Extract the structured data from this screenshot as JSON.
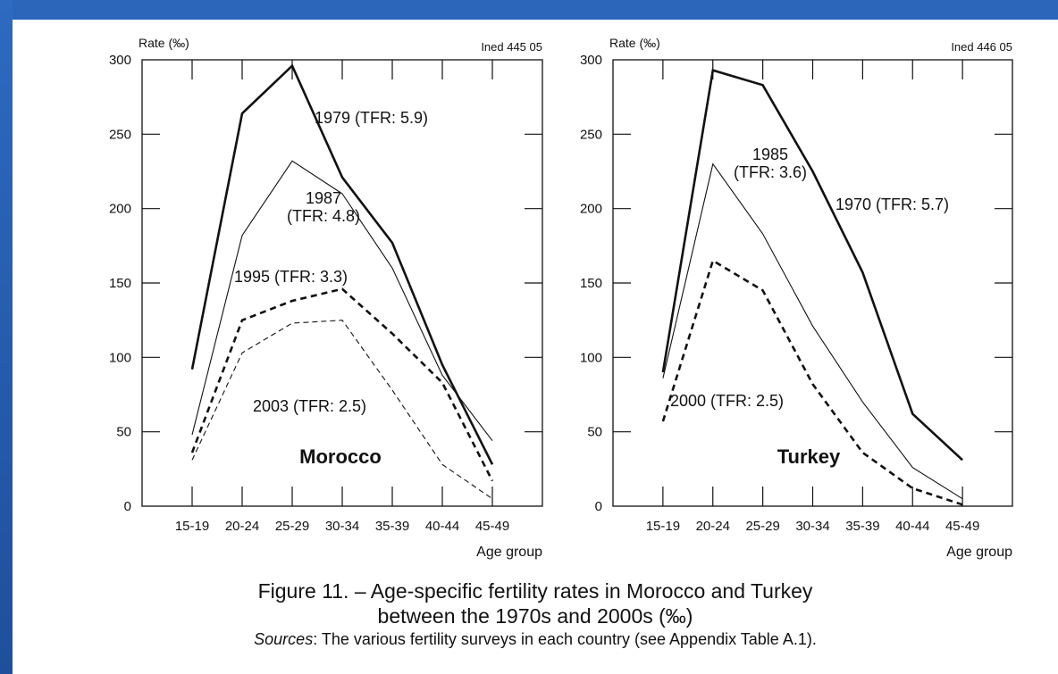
{
  "figure": {
    "caption_line1": "Figure 11. – Age-specific fertility rates in Morocco and Turkey",
    "caption_line2": "between the 1970s and 2000s (‰)",
    "sources_label": "Sources",
    "sources_text": ": The various fertility surveys in each country (see Appendix Table A.1)."
  },
  "chart_data": [
    {
      "type": "line",
      "panel_label": "Morocco",
      "ylabel": "Rate (‰)",
      "xlabel": "Age group",
      "source_ref": "Ined 445 05",
      "categories": [
        "15-19",
        "20-24",
        "25-29",
        "30-34",
        "35-39",
        "40-44",
        "45-49"
      ],
      "ylim": [
        0,
        300
      ],
      "yticks": [
        0,
        50,
        100,
        150,
        200,
        250,
        300
      ],
      "series": [
        {
          "name": "1979 (TFR: 5.9)",
          "label_lines": [
            "1979 (TFR: 5.9)"
          ],
          "values": [
            92,
            264,
            296,
            221,
            177,
            95,
            28
          ],
          "style": "solid-thick"
        },
        {
          "name": "1987 (TFR: 4.8)",
          "label_lines": [
            "1987",
            "(TFR: 4.8)"
          ],
          "values": [
            48,
            182,
            232,
            210,
            160,
            88,
            44
          ],
          "style": "solid-thin"
        },
        {
          "name": "1995 (TFR: 3.3)",
          "label_lines": [
            "1995 (TFR: 3.3)"
          ],
          "values": [
            36,
            125,
            138,
            146,
            116,
            83,
            17
          ],
          "style": "dashed-thick"
        },
        {
          "name": "2003 (TFR: 2.5)",
          "label_lines": [
            "2003 (TFR: 2.5)"
          ],
          "values": [
            31,
            103,
            123,
            125,
            78,
            28,
            5
          ],
          "style": "dashed-thin"
        }
      ]
    },
    {
      "type": "line",
      "panel_label": "Turkey",
      "ylabel": "Rate (‰)",
      "xlabel": "Age group",
      "source_ref": "Ined 446 05",
      "categories": [
        "15-19",
        "20-24",
        "25-29",
        "30-34",
        "35-39",
        "40-44",
        "45-49"
      ],
      "ylim": [
        0,
        300
      ],
      "yticks": [
        0,
        50,
        100,
        150,
        200,
        250,
        300
      ],
      "series": [
        {
          "name": "1970 (TFR: 5.7)",
          "label_lines": [
            "1970 (TFR: 5.7)"
          ],
          "values": [
            90,
            293,
            283,
            225,
            157,
            62,
            31
          ],
          "style": "solid-thick"
        },
        {
          "name": "1985 (TFR: 3.6)",
          "label_lines": [
            "1985",
            "(TFR: 3.6)"
          ],
          "values": [
            86,
            230,
            183,
            121,
            70,
            26,
            5
          ],
          "style": "solid-thin"
        },
        {
          "name": "2000 (TFR: 2.5)",
          "label_lines": [
            "2000 (TFR: 2.5)"
          ],
          "values": [
            57,
            165,
            145,
            82,
            36,
            12,
            1
          ],
          "style": "dashed-thick"
        }
      ]
    }
  ]
}
